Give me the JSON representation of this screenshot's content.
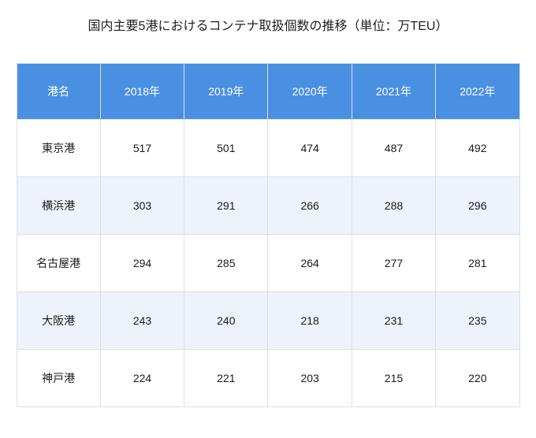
{
  "title": "国内主要5港におけるコンテナ取扱個数の推移（単位：万TEU）",
  "colors": {
    "header_bg": "#4a90e2",
    "header_text": "#ffffff",
    "row_alt_bg": "#edf2fb",
    "border": "#d9dfe9",
    "title_text": "#1f1f1f",
    "cell_text": "#1a1a1a"
  },
  "table": {
    "columns": [
      "港名",
      "2018年",
      "2019年",
      "2020年",
      "2021年",
      "2022年"
    ],
    "rows": [
      {
        "port": "東京港",
        "values": [
          "517",
          "501",
          "474",
          "487",
          "492"
        ]
      },
      {
        "port": "横浜港",
        "values": [
          "303",
          "291",
          "266",
          "288",
          "296"
        ]
      },
      {
        "port": "名古屋港",
        "values": [
          "294",
          "285",
          "264",
          "277",
          "281"
        ]
      },
      {
        "port": "大阪港",
        "values": [
          "243",
          "240",
          "218",
          "231",
          "235"
        ]
      },
      {
        "port": "神戸港",
        "values": [
          "224",
          "221",
          "203",
          "215",
          "220"
        ]
      }
    ]
  },
  "chart_data": {
    "type": "table",
    "title": "国内主要5港におけるコンテナ取扱個数の推移（単位：万TEU）",
    "unit": "万TEU",
    "row_header_label": "港名",
    "categories": [
      "2018年",
      "2019年",
      "2020年",
      "2021年",
      "2022年"
    ],
    "series": [
      {
        "name": "東京港",
        "values": [
          517,
          501,
          474,
          487,
          492
        ]
      },
      {
        "name": "横浜港",
        "values": [
          303,
          291,
          266,
          288,
          296
        ]
      },
      {
        "name": "名古屋港",
        "values": [
          294,
          285,
          264,
          277,
          281
        ]
      },
      {
        "name": "大阪港",
        "values": [
          243,
          240,
          218,
          231,
          235
        ]
      },
      {
        "name": "神戸港",
        "values": [
          224,
          221,
          203,
          215,
          220
        ]
      }
    ]
  }
}
